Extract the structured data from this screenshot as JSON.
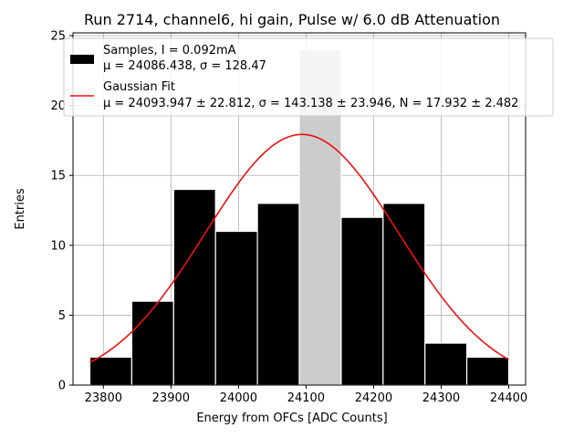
{
  "chart_data": {
    "type": "bar",
    "title": "Run 2714, channel6, hi gain, Pulse w/ 6.0 dB Attenuation",
    "xlabel": "Energy from OFCs [ADC Counts]",
    "ylabel": "Entries",
    "xlim": [
      23755,
      24425
    ],
    "ylim": [
      0,
      25.2
    ],
    "xticks": [
      23800,
      23900,
      24000,
      24100,
      24200,
      24300,
      24400
    ],
    "yticks": [
      0,
      5,
      10,
      15,
      20,
      25
    ],
    "grid": true,
    "legend_position": "top-right",
    "histogram": {
      "name": "Samples, I = 0.092mA",
      "stats": "μ = 24086.438, σ = 128.47",
      "color": "#000000",
      "bin_edges": [
        23780,
        23842,
        23904,
        23966,
        24028,
        24090,
        24152,
        24214,
        24276,
        24338,
        24400
      ],
      "counts": [
        2,
        6,
        14,
        11,
        13,
        24,
        12,
        13,
        3,
        2
      ],
      "highlight_bin": 5,
      "highlight_color": "#cccccc"
    },
    "fit": {
      "name": "Gaussian Fit",
      "stats": "μ = 24093.947 ± 22.812, σ = 143.138 ± 23.946, N = 17.932 ± 2.482",
      "color": "#ee1111",
      "mu": 24093.947,
      "sigma": 143.138,
      "peak": 17.932,
      "x_range": [
        23780,
        24400
      ]
    }
  }
}
